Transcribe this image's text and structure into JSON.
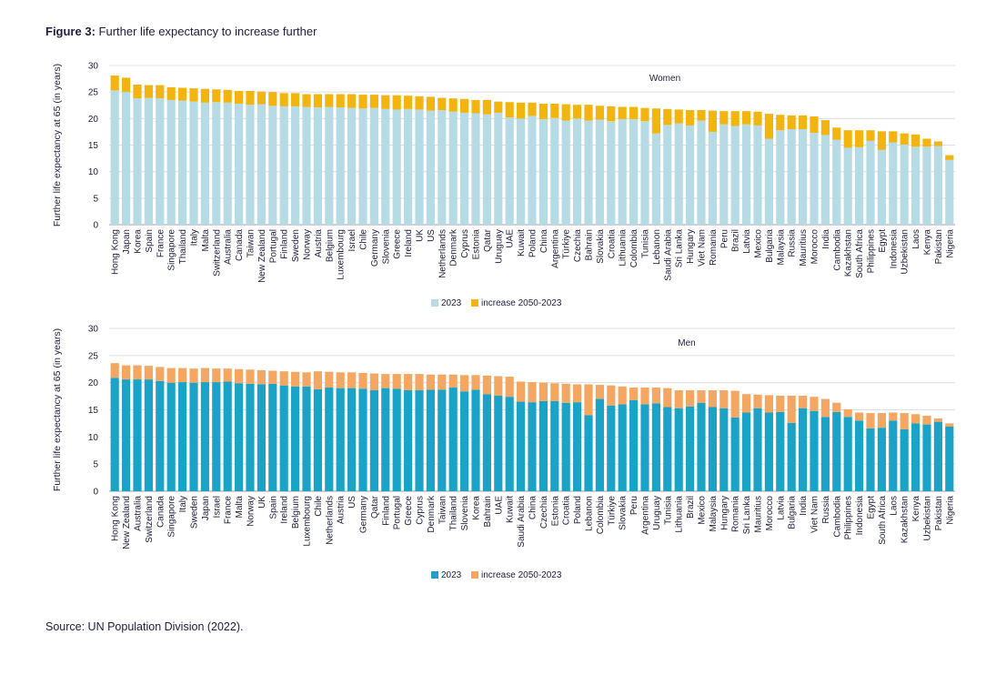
{
  "figure": {
    "label": "Figure 3:",
    "title": "Further life expectancy to increase further",
    "source": "Source: UN Population Division (2022)."
  },
  "chart_data": [
    {
      "type": "bar",
      "stacked": true,
      "title": "Women",
      "ylabel": "Further life expectancy at 65 (in years)",
      "xlabel": "",
      "ylim": [
        0,
        30
      ],
      "yticks": [
        0,
        5,
        10,
        15,
        20,
        25,
        30
      ],
      "grid": true,
      "legend": "bottom-center",
      "colors": {
        "base": "#b6dbe5",
        "increase": "#f2b40f"
      },
      "categories": [
        "Hong Kong",
        "Japan",
        "Korea",
        "Spain",
        "France",
        "Singapore",
        "Thailand",
        "Italy",
        "Malta",
        "Switzerland",
        "Australia",
        "Canada",
        "Taiwan",
        "New Zealand",
        "Portugal",
        "Finland",
        "Sweden",
        "Norway",
        "Austria",
        "Belgium",
        "Luxembourg",
        "Israel",
        "Chile",
        "Germany",
        "Slovenia",
        "Greece",
        "Ireland",
        "UK",
        "US",
        "Netherlands",
        "Denmark",
        "Cyprus",
        "Estonia",
        "Qatar",
        "Uruguay",
        "UAE",
        "Kuwait",
        "Poland",
        "China",
        "Argentina",
        "Türkiye",
        "Czechia",
        "Bahrain",
        "Slovakia",
        "Croatia",
        "Lithuania",
        "Colombia",
        "Tunisia",
        "Lebanon",
        "Saudi Arabia",
        "Sri Lanka",
        "Hungary",
        "Viet Nam",
        "Romania",
        "Peru",
        "Brazil",
        "Latvia",
        "Mexico",
        "Bulgaria",
        "Malaysia",
        "Russia",
        "Mauritius",
        "Morocco",
        "India",
        "Cambodia",
        "Kazakhstan",
        "South Africa",
        "Philippines",
        "Egypt",
        "Indonesia",
        "Uzbekistan",
        "Laos",
        "Kenya",
        "Pakistan",
        "Nigeria"
      ],
      "series": [
        {
          "name": "2023",
          "values": [
            25.3,
            25.0,
            23.8,
            23.9,
            23.8,
            23.5,
            23.4,
            23.2,
            23.0,
            23.1,
            23.0,
            22.8,
            22.6,
            22.7,
            22.4,
            22.3,
            22.3,
            22.2,
            22.1,
            22.2,
            22.1,
            22.0,
            21.9,
            22.0,
            21.8,
            21.7,
            21.8,
            21.7,
            21.5,
            21.6,
            21.3,
            21.1,
            21.0,
            20.8,
            21.1,
            20.2,
            20.0,
            20.5,
            19.9,
            20.1,
            19.6,
            20.0,
            19.6,
            19.8,
            19.5,
            19.9,
            19.9,
            19.5,
            17.2,
            18.8,
            19.1,
            18.7,
            19.6,
            17.5,
            18.9,
            18.6,
            18.9,
            18.7,
            16.2,
            17.8,
            18.0,
            18.0,
            17.3,
            16.9,
            16.0,
            14.5,
            14.6,
            15.8,
            14.1,
            15.5,
            15.1,
            14.7,
            14.7,
            14.8,
            12.2
          ]
        },
        {
          "name": "increase 2050-2023",
          "values": [
            2.8,
            2.7,
            2.6,
            2.4,
            2.5,
            2.4,
            2.4,
            2.5,
            2.6,
            2.4,
            2.4,
            2.4,
            2.6,
            2.4,
            2.6,
            2.5,
            2.5,
            2.4,
            2.5,
            2.4,
            2.5,
            2.6,
            2.6,
            2.5,
            2.6,
            2.7,
            2.5,
            2.5,
            2.6,
            2.3,
            2.5,
            2.6,
            2.5,
            2.7,
            2.1,
            2.9,
            3.0,
            2.5,
            2.9,
            2.7,
            3.1,
            2.6,
            3.0,
            2.6,
            2.8,
            2.3,
            2.3,
            2.5,
            4.7,
            3.0,
            2.6,
            2.9,
            2.0,
            4.0,
            2.5,
            2.8,
            2.5,
            2.6,
            4.7,
            2.9,
            2.6,
            2.6,
            3.1,
            2.8,
            2.3,
            3.3,
            3.2,
            2.0,
            3.5,
            2.1,
            2.1,
            2.3,
            1.5,
            0.9,
            0.9
          ]
        }
      ]
    },
    {
      "type": "bar",
      "stacked": true,
      "title": "Men",
      "ylabel": "Further life expectancy at 65 (in years)",
      "xlabel": "",
      "ylim": [
        0,
        30
      ],
      "yticks": [
        0,
        5,
        10,
        15,
        20,
        25,
        30
      ],
      "grid": true,
      "legend": "bottom-center",
      "colors": {
        "base": "#1aa3c7",
        "increase": "#f4a762"
      },
      "categories": [
        "Hong Kong",
        "New Zealand",
        "Australia",
        "Switzerland",
        "Canada",
        "Singapore",
        "Italy",
        "Sweden",
        "Japan",
        "Israel",
        "France",
        "Malta",
        "Norway",
        "UK",
        "Spain",
        "Ireland",
        "Belgium",
        "Luxembourg",
        "Chile",
        "Netherlands",
        "Austria",
        "US",
        "Germany",
        "Qatar",
        "Finland",
        "Portugal",
        "Greece",
        "Cyprus",
        "Denmark",
        "Taiwan",
        "Thailand",
        "Slovenia",
        "Korea",
        "Bahrain",
        "UAE",
        "Kuwait",
        "Saudi Arabia",
        "China",
        "Czechia",
        "Estonia",
        "Croatia",
        "Poland",
        "Lebanon",
        "Colombia",
        "Türkiye",
        "Slovakia",
        "Peru",
        "Argentina",
        "Uruguay",
        "Tunisia",
        "Lithuania",
        "Brazil",
        "Mexico",
        "Malaysia",
        "Hungary",
        "Romania",
        "Sri Lanka",
        "Mauritius",
        "Morocco",
        "Latvia",
        "Bulgaria",
        "India",
        "Viet Nam",
        "Russia",
        "Cambodia",
        "Philippines",
        "Indonesia",
        "Egypt",
        "South Africa",
        "Laos",
        "Kazakhstan",
        "Kenya",
        "Uzbekistan",
        "Pakistan",
        "Nigeria"
      ],
      "series": [
        {
          "name": "2023",
          "values": [
            20.9,
            20.6,
            20.6,
            20.6,
            20.3,
            20.0,
            20.1,
            20.0,
            20.1,
            20.1,
            20.2,
            19.9,
            19.8,
            19.7,
            19.8,
            19.5,
            19.3,
            19.3,
            18.8,
            19.1,
            19.0,
            19.0,
            18.9,
            18.6,
            19.0,
            18.9,
            18.6,
            18.6,
            18.7,
            18.7,
            19.1,
            18.4,
            18.7,
            17.9,
            17.6,
            17.4,
            16.5,
            16.4,
            16.6,
            16.6,
            16.3,
            16.4,
            14.0,
            17.0,
            15.8,
            16.0,
            16.8,
            16.0,
            16.2,
            15.5,
            15.3,
            15.6,
            16.3,
            15.5,
            15.3,
            13.6,
            14.5,
            15.3,
            14.5,
            14.6,
            12.6,
            15.3,
            14.8,
            13.7,
            14.6,
            13.7,
            13.0,
            11.6,
            11.7,
            13.0,
            11.4,
            12.5,
            12.3,
            12.8,
            11.9
          ]
        },
        {
          "name": "increase 2050-2023",
          "values": [
            2.7,
            2.6,
            2.6,
            2.5,
            2.6,
            2.7,
            2.6,
            2.6,
            2.6,
            2.5,
            2.4,
            2.6,
            2.6,
            2.6,
            2.4,
            2.6,
            2.7,
            2.6,
            3.3,
            2.9,
            2.9,
            2.9,
            2.9,
            3.1,
            2.6,
            2.7,
            3.0,
            3.0,
            2.8,
            2.8,
            2.4,
            3.0,
            2.7,
            3.4,
            3.6,
            3.7,
            3.7,
            3.7,
            3.4,
            3.3,
            3.5,
            3.3,
            5.7,
            2.6,
            3.7,
            3.3,
            2.3,
            3.1,
            2.9,
            3.5,
            3.3,
            3.0,
            2.3,
            3.1,
            3.3,
            4.9,
            3.4,
            2.5,
            3.2,
            3.0,
            5.0,
            2.3,
            2.6,
            3.3,
            1.7,
            1.4,
            1.5,
            2.8,
            2.7,
            1.5,
            3.0,
            1.7,
            1.6,
            0.6,
            0.6
          ]
        }
      ]
    }
  ]
}
